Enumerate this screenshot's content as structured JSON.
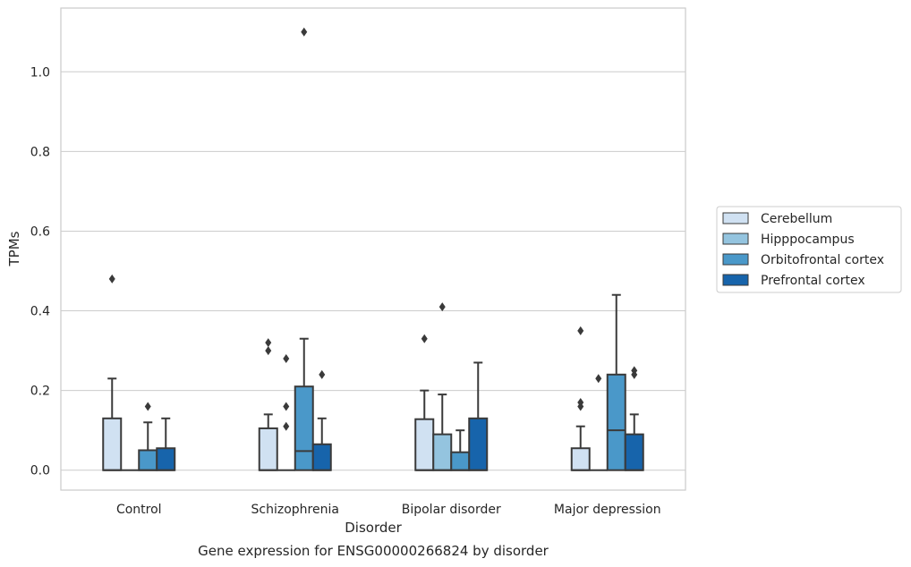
{
  "chart_data": {
    "type": "box",
    "title": "",
    "caption": "Gene expression for ENSG00000266824 by disorder",
    "xlabel": "Disorder",
    "ylabel": "TPMs",
    "ylim": [
      -0.05,
      1.16
    ],
    "yticks": [
      0.0,
      0.2,
      0.4,
      0.6,
      0.8,
      1.0
    ],
    "ytick_labels": [
      "0.0",
      "0.2",
      "0.4",
      "0.6",
      "0.8",
      "1.0"
    ],
    "grid": "horizontal",
    "legend_position": "right",
    "categories": [
      "Control",
      "Schizophrenia",
      "Bipolar disorder",
      "Major depression"
    ],
    "series": [
      {
        "name": "Cerebellum",
        "color": "#d0e1f2",
        "boxes": [
          {
            "q1": 0.0,
            "median": 0.0,
            "q3": 0.13,
            "whisker_low": 0.0,
            "whisker_high": 0.23,
            "outliers": [
              0.48
            ]
          },
          {
            "q1": 0.0,
            "median": 0.0,
            "q3": 0.105,
            "whisker_low": 0.0,
            "whisker_high": 0.14,
            "outliers": [
              0.3,
              0.32
            ]
          },
          {
            "q1": 0.0,
            "median": 0.0,
            "q3": 0.128,
            "whisker_low": 0.0,
            "whisker_high": 0.2,
            "outliers": [
              0.33
            ]
          },
          {
            "q1": 0.0,
            "median": 0.0,
            "q3": 0.055,
            "whisker_low": 0.0,
            "whisker_high": 0.11,
            "outliers": [
              0.16,
              0.17,
              0.35
            ]
          }
        ]
      },
      {
        "name": "Hipppocampus",
        "color": "#94c4df",
        "boxes": [
          {
            "q1": 0.0,
            "median": 0.0,
            "q3": 0.0,
            "whisker_low": 0.0,
            "whisker_high": 0.0,
            "outliers": []
          },
          {
            "q1": 0.0,
            "median": 0.0,
            "q3": 0.0,
            "whisker_low": 0.0,
            "whisker_high": 0.0,
            "outliers": [
              0.11,
              0.16,
              0.28
            ]
          },
          {
            "q1": 0.0,
            "median": 0.0,
            "q3": 0.09,
            "whisker_low": 0.0,
            "whisker_high": 0.19,
            "outliers": [
              0.41
            ]
          },
          {
            "q1": 0.0,
            "median": 0.0,
            "q3": 0.0,
            "whisker_low": 0.0,
            "whisker_high": 0.0,
            "outliers": [
              0.23
            ]
          }
        ]
      },
      {
        "name": "Orbitofrontal cortex",
        "color": "#4a98c9",
        "boxes": [
          {
            "q1": 0.0,
            "median": 0.0,
            "q3": 0.05,
            "whisker_low": 0.0,
            "whisker_high": 0.12,
            "outliers": [
              0.16
            ]
          },
          {
            "q1": 0.0,
            "median": 0.048,
            "q3": 0.21,
            "whisker_low": 0.0,
            "whisker_high": 0.33,
            "outliers": [
              1.1
            ]
          },
          {
            "q1": 0.0,
            "median": 0.0,
            "q3": 0.045,
            "whisker_low": 0.0,
            "whisker_high": 0.1,
            "outliers": []
          },
          {
            "q1": 0.0,
            "median": 0.1,
            "q3": 0.24,
            "whisker_low": 0.0,
            "whisker_high": 0.44,
            "outliers": []
          }
        ]
      },
      {
        "name": "Prefrontal cortex",
        "color": "#1764ab",
        "boxes": [
          {
            "q1": 0.0,
            "median": 0.0,
            "q3": 0.055,
            "whisker_low": 0.0,
            "whisker_high": 0.13,
            "outliers": []
          },
          {
            "q1": 0.0,
            "median": 0.0,
            "q3": 0.065,
            "whisker_low": 0.0,
            "whisker_high": 0.13,
            "outliers": [
              0.24
            ]
          },
          {
            "q1": 0.0,
            "median": 0.0,
            "q3": 0.13,
            "whisker_low": 0.0,
            "whisker_high": 0.27,
            "outliers": []
          },
          {
            "q1": 0.0,
            "median": 0.0,
            "q3": 0.09,
            "whisker_low": 0.0,
            "whisker_high": 0.14,
            "outliers": [
              0.24,
              0.25
            ]
          }
        ]
      }
    ]
  }
}
